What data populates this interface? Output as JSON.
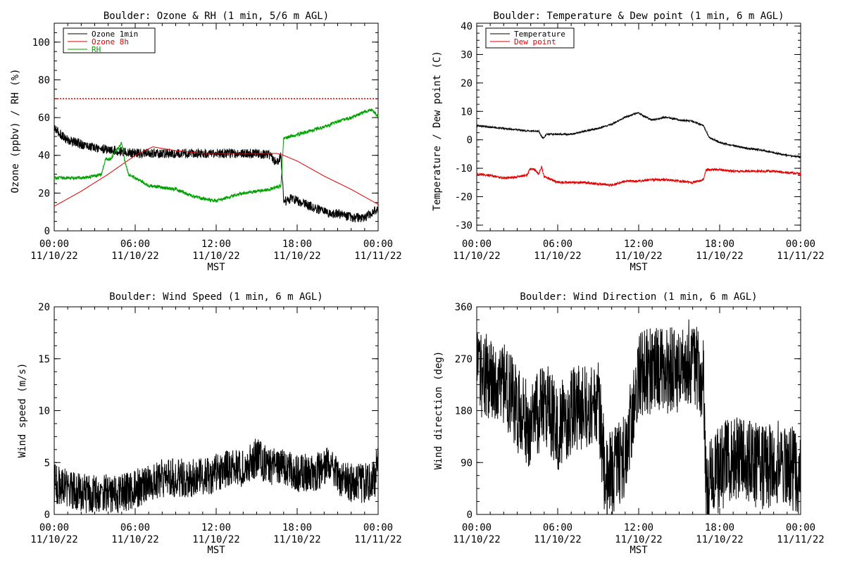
{
  "chart_data": [
    {
      "type": "line",
      "title": "Boulder: Ozone & RH (1 min, 5/6 m AGL)",
      "ylabel": "Ozone (ppbv) / RH (%)",
      "xlabel": "MST",
      "xlim": [
        0,
        24
      ],
      "ylim": [
        0,
        110
      ],
      "yticks": [
        0,
        20,
        40,
        60,
        80,
        100
      ],
      "x_ticks": [
        {
          "time": "00:00",
          "date": "11/10/22"
        },
        {
          "time": "06:00",
          "date": "11/10/22"
        },
        {
          "time": "12:00",
          "date": "11/10/22"
        },
        {
          "time": "18:00",
          "date": "11/10/22"
        },
        {
          "time": "00:00",
          "date": "11/11/22"
        }
      ],
      "legend": {
        "placement": "top-left",
        "entries": [
          "Ozone 1min",
          "Ozone 8h",
          "RH"
        ]
      },
      "reference_line": {
        "y": 70,
        "style": "dotted",
        "color": "#e00000"
      },
      "series": [
        {
          "name": "Ozone 1min",
          "color": "#000000",
          "noise": 2.5,
          "points": [
            [
              0,
              54
            ],
            [
              1,
              48
            ],
            [
              2,
              46
            ],
            [
              3,
              44
            ],
            [
              4,
              43
            ],
            [
              5,
              42
            ],
            [
              6,
              41
            ],
            [
              7,
              41
            ],
            [
              8,
              41
            ],
            [
              9,
              41
            ],
            [
              10,
              41
            ],
            [
              11,
              41
            ],
            [
              12,
              41
            ],
            [
              13,
              41
            ],
            [
              14,
              41
            ],
            [
              15,
              41
            ],
            [
              16,
              40
            ],
            [
              16.5,
              36
            ],
            [
              16.8,
              40
            ],
            [
              17.0,
              15
            ],
            [
              17.5,
              17
            ],
            [
              18,
              16
            ],
            [
              19,
              13
            ],
            [
              20,
              10
            ],
            [
              21,
              9
            ],
            [
              22,
              7
            ],
            [
              23,
              7
            ],
            [
              23.5,
              9
            ],
            [
              24,
              12
            ]
          ]
        },
        {
          "name": "Ozone 8h",
          "color": "#e00000",
          "noise": 0,
          "points": [
            [
              0,
              13
            ],
            [
              2,
              21
            ],
            [
              4,
              30
            ],
            [
              6,
              40
            ],
            [
              7.3,
              44.5
            ],
            [
              9,
              42.5
            ],
            [
              11,
              41
            ],
            [
              14,
              41
            ],
            [
              16.5,
              41
            ],
            [
              17,
              40
            ],
            [
              18,
              37
            ],
            [
              20,
              29
            ],
            [
              22,
              22
            ],
            [
              24,
              14
            ]
          ]
        },
        {
          "name": "RH",
          "color": "#00a000",
          "noise": 0.9,
          "points": [
            [
              0,
              28
            ],
            [
              1,
              28
            ],
            [
              2,
              28
            ],
            [
              3,
              29
            ],
            [
              3.5,
              30
            ],
            [
              3.8,
              38
            ],
            [
              4.2,
              38
            ],
            [
              4.5,
              42
            ],
            [
              4.8,
              44
            ],
            [
              5.0,
              47
            ],
            [
              5.2,
              38
            ],
            [
              5.5,
              30
            ],
            [
              6,
              28
            ],
            [
              7,
              24
            ],
            [
              8,
              23
            ],
            [
              9,
              22
            ],
            [
              10,
              19
            ],
            [
              11,
              17
            ],
            [
              12,
              16
            ],
            [
              13,
              18
            ],
            [
              14,
              20
            ],
            [
              15,
              21
            ],
            [
              16,
              22
            ],
            [
              16.8,
              24
            ],
            [
              17.0,
              49
            ],
            [
              17.5,
              50
            ],
            [
              18,
              51
            ],
            [
              19,
              53
            ],
            [
              20,
              55
            ],
            [
              21,
              58
            ],
            [
              22,
              60
            ],
            [
              23,
              63
            ],
            [
              23.5,
              64
            ],
            [
              24,
              61
            ]
          ]
        }
      ]
    },
    {
      "type": "line",
      "title": "Boulder: Temperature & Dew point (1 min, 6 m AGL)",
      "ylabel": "Temperature / Dew point (C)",
      "xlabel": "MST",
      "xlim": [
        0,
        24
      ],
      "ylim": [
        -32,
        41
      ],
      "yticks": [
        -30,
        -20,
        -10,
        0,
        10,
        20,
        30,
        40
      ],
      "x_ticks": [
        {
          "time": "00:00",
          "date": "11/10/22"
        },
        {
          "time": "06:00",
          "date": "11/10/22"
        },
        {
          "time": "12:00",
          "date": "11/10/22"
        },
        {
          "time": "18:00",
          "date": "11/10/22"
        },
        {
          "time": "00:00",
          "date": "11/11/22"
        }
      ],
      "legend": {
        "placement": "top-left",
        "entries": [
          "Temperature",
          "Dew point"
        ]
      },
      "series": [
        {
          "name": "Temperature",
          "color": "#000000",
          "noise": 0.3,
          "points": [
            [
              0,
              5
            ],
            [
              1,
              4.5
            ],
            [
              2,
              4
            ],
            [
              3,
              3.5
            ],
            [
              4,
              3
            ],
            [
              4.6,
              3
            ],
            [
              4.9,
              0.5
            ],
            [
              5.2,
              2
            ],
            [
              6,
              2
            ],
            [
              7,
              2
            ],
            [
              8,
              3
            ],
            [
              9,
              4
            ],
            [
              10,
              5.5
            ],
            [
              11,
              8
            ],
            [
              12,
              9.5
            ],
            [
              12.5,
              8
            ],
            [
              13,
              7
            ],
            [
              14,
              8
            ],
            [
              15,
              7
            ],
            [
              16,
              6.5
            ],
            [
              16.8,
              5
            ],
            [
              17.2,
              1
            ],
            [
              18,
              -1
            ],
            [
              19,
              -2
            ],
            [
              20,
              -3
            ],
            [
              21,
              -3.5
            ],
            [
              22,
              -4.5
            ],
            [
              23,
              -5.5
            ],
            [
              24,
              -6
            ]
          ]
        },
        {
          "name": "Dew point",
          "color": "#e00000",
          "noise": 0.4,
          "points": [
            [
              0,
              -12
            ],
            [
              1,
              -12.5
            ],
            [
              2,
              -13.5
            ],
            [
              3,
              -13
            ],
            [
              3.7,
              -12.5
            ],
            [
              4,
              -10
            ],
            [
              4.3,
              -10.5
            ],
            [
              4.6,
              -12
            ],
            [
              4.8,
              -9.5
            ],
            [
              5.0,
              -13
            ],
            [
              6,
              -15
            ],
            [
              7,
              -15
            ],
            [
              8,
              -15
            ],
            [
              9,
              -15.5
            ],
            [
              10,
              -16
            ],
            [
              11,
              -14.5
            ],
            [
              12,
              -14.5
            ],
            [
              13,
              -14
            ],
            [
              14,
              -14
            ],
            [
              15,
              -14.5
            ],
            [
              16,
              -15
            ],
            [
              16.8,
              -14
            ],
            [
              17.0,
              -10.5
            ],
            [
              18,
              -10.5
            ],
            [
              19,
              -11
            ],
            [
              20,
              -11
            ],
            [
              21,
              -11
            ],
            [
              22,
              -11
            ],
            [
              23,
              -11.5
            ],
            [
              24,
              -12
            ]
          ]
        }
      ]
    },
    {
      "type": "line",
      "title": "Boulder: Wind Speed (1 min, 6 m AGL)",
      "ylabel": "Wind speed (m/s)",
      "xlabel": "MST",
      "xlim": [
        0,
        24
      ],
      "ylim": [
        0,
        20
      ],
      "yticks": [
        0,
        5,
        10,
        15,
        20
      ],
      "x_ticks": [
        {
          "time": "00:00",
          "date": "11/10/22"
        },
        {
          "time": "06:00",
          "date": "11/10/22"
        },
        {
          "time": "12:00",
          "date": "11/10/22"
        },
        {
          "time": "18:00",
          "date": "11/10/22"
        },
        {
          "time": "00:00",
          "date": "11/11/22"
        }
      ],
      "series": [
        {
          "name": "",
          "color": "#000000",
          "noise": 1.9,
          "floor": 0,
          "points": [
            [
              0,
              3
            ],
            [
              1,
              2.5
            ],
            [
              2,
              2
            ],
            [
              3,
              2
            ],
            [
              4,
              2
            ],
            [
              5,
              2
            ],
            [
              6,
              2.5
            ],
            [
              7,
              3
            ],
            [
              8,
              3.5
            ],
            [
              9,
              3.5
            ],
            [
              10,
              3.5
            ],
            [
              11,
              3.5
            ],
            [
              12,
              4
            ],
            [
              13,
              4.5
            ],
            [
              14,
              4.5
            ],
            [
              15,
              5.5
            ],
            [
              16,
              4.5
            ],
            [
              17,
              4.5
            ],
            [
              18,
              4
            ],
            [
              19,
              4
            ],
            [
              20,
              4.5
            ],
            [
              20.5,
              5.5
            ],
            [
              21,
              3.5
            ],
            [
              22,
              3
            ],
            [
              23,
              3
            ],
            [
              23.8,
              3.5
            ],
            [
              24,
              6
            ]
          ]
        }
      ]
    },
    {
      "type": "line",
      "title": "Boulder: Wind Direction (1 min, 6 m AGL)",
      "ylabel": "Wind direction (deg)",
      "xlabel": "MST",
      "xlim": [
        0,
        24
      ],
      "ylim": [
        0,
        360
      ],
      "yticks": [
        0,
        90,
        180,
        270,
        360
      ],
      "x_ticks": [
        {
          "time": "00:00",
          "date": "11/10/22"
        },
        {
          "time": "06:00",
          "date": "11/10/22"
        },
        {
          "time": "12:00",
          "date": "11/10/22"
        },
        {
          "time": "18:00",
          "date": "11/10/22"
        },
        {
          "time": "00:00",
          "date": "11/11/22"
        }
      ],
      "series": [
        {
          "name": "",
          "color": "#000000",
          "noise": 75,
          "floor": 0,
          "ceil": 360,
          "points": [
            [
              0,
              240
            ],
            [
              1,
              240
            ],
            [
              2,
              230
            ],
            [
              3,
              180
            ],
            [
              4,
              150
            ],
            [
              5,
              200
            ],
            [
              6,
              150
            ],
            [
              7,
              180
            ],
            [
              8,
              190
            ],
            [
              9,
              200
            ],
            [
              9.5,
              70
            ],
            [
              10,
              70
            ],
            [
              11,
              100
            ],
            [
              12,
              240
            ],
            [
              13,
              250
            ],
            [
              14,
              250
            ],
            [
              15,
              250
            ],
            [
              16,
              270
            ],
            [
              16.8,
              230
            ],
            [
              17.0,
              50
            ],
            [
              17.5,
              60
            ],
            [
              18,
              80
            ],
            [
              19,
              100
            ],
            [
              20,
              95
            ],
            [
              21,
              80
            ],
            [
              22,
              85
            ],
            [
              22.5,
              100
            ],
            [
              23,
              90
            ],
            [
              24,
              60
            ]
          ]
        }
      ]
    }
  ]
}
